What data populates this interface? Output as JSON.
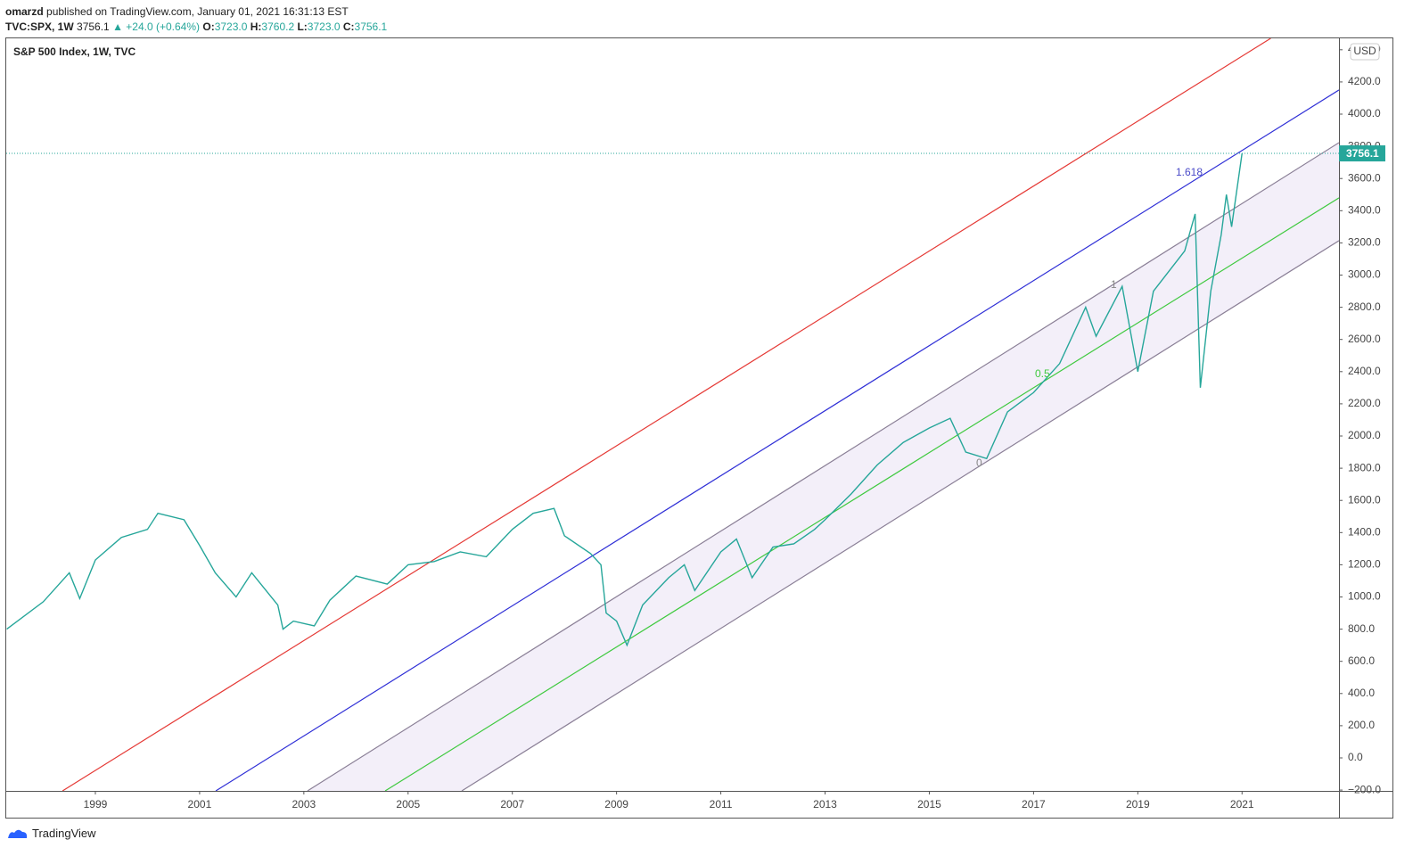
{
  "header": {
    "line1": {
      "author": "omarzd",
      "rest": "published on TradingView.com, January 01, 2021 16:31:13 EST"
    },
    "line2": {
      "symbol": "TVC:SPX, 1W",
      "last": "3756.1",
      "change": "▲ +24.0 (+0.64%)",
      "o_label": "O:",
      "o": "3723.0",
      "h_label": "H:",
      "h": "3760.2",
      "l_label": "L:",
      "l": "3723.0",
      "c_label": "C:",
      "c": "3756.1"
    }
  },
  "footer": {
    "brand": "TradingView"
  },
  "chart_data": {
    "type": "line",
    "title": "S&P 500 Index, 1W, TVC",
    "currency": "USD",
    "xlim": [
      1997.29,
      2022.86
    ],
    "xticks": [
      1999,
      2001,
      2003,
      2005,
      2007,
      2009,
      2011,
      2013,
      2015,
      2017,
      2019,
      2021
    ],
    "ylim": [
      -205,
      4471
    ],
    "yticks": [
      {
        "value": -200,
        "label": "−200.0"
      },
      {
        "value": 0,
        "label": "0.0"
      },
      {
        "value": 200,
        "label": "200.0"
      },
      {
        "value": 400,
        "label": "400.0"
      },
      {
        "value": 600,
        "label": "600.0"
      },
      {
        "value": 800,
        "label": "800.0"
      },
      {
        "value": 1000,
        "label": "1000.0"
      },
      {
        "value": 1200,
        "label": "1200.0"
      },
      {
        "value": 1400,
        "label": "1400.0"
      },
      {
        "value": 1600,
        "label": "1600.0"
      },
      {
        "value": 1800,
        "label": "1800.0"
      },
      {
        "value": 2000,
        "label": "2000.0"
      },
      {
        "value": 2200,
        "label": "2200.0"
      },
      {
        "value": 2400,
        "label": "2400.0"
      },
      {
        "value": 2600,
        "label": "2600.0"
      },
      {
        "value": 2800,
        "label": "2800.0"
      },
      {
        "value": 3000,
        "label": "3000.0"
      },
      {
        "value": 3200,
        "label": "3200.0"
      },
      {
        "value": 3400,
        "label": "3400.0"
      },
      {
        "value": 3600,
        "label": "3600.0"
      },
      {
        "value": 3800,
        "label": "3800.0"
      },
      {
        "value": 4000,
        "label": "4000.0"
      },
      {
        "value": 4200,
        "label": "4200.0"
      },
      {
        "value": 4400,
        "label": "4400.0"
      }
    ],
    "series": [
      {
        "name": "S&P 500 Index",
        "color": "#26a69a",
        "x": [
          1997.3,
          1998.0,
          1998.5,
          1998.7,
          1999.0,
          1999.5,
          2000.0,
          2000.2,
          2000.7,
          2001.0,
          2001.3,
          2001.7,
          2002.0,
          2002.5,
          2002.6,
          2002.8,
          2003.2,
          2003.5,
          2004.0,
          2004.6,
          2005.0,
          2005.5,
          2006.0,
          2006.5,
          2007.0,
          2007.4,
          2007.8,
          2008.0,
          2008.5,
          2008.7,
          2008.8,
          2009.0,
          2009.2,
          2009.5,
          2010.0,
          2010.3,
          2010.5,
          2011.0,
          2011.3,
          2011.6,
          2012.0,
          2012.4,
          2012.8,
          2013.0,
          2013.5,
          2014.0,
          2014.5,
          2015.0,
          2015.4,
          2015.7,
          2016.1,
          2016.5,
          2017.0,
          2017.5,
          2018.0,
          2018.2,
          2018.7,
          2019.0,
          2019.3,
          2019.9,
          2020.1,
          2020.2,
          2020.4,
          2020.6,
          2020.7,
          2020.8,
          2021.0
        ],
        "values": [
          800,
          970,
          1150,
          990,
          1230,
          1370,
          1420,
          1520,
          1480,
          1320,
          1150,
          1000,
          1150,
          950,
          800,
          850,
          820,
          980,
          1130,
          1080,
          1200,
          1220,
          1280,
          1250,
          1420,
          1520,
          1550,
          1380,
          1270,
          1200,
          900,
          850,
          700,
          950,
          1120,
          1200,
          1040,
          1280,
          1360,
          1120,
          1310,
          1330,
          1420,
          1480,
          1640,
          1820,
          1960,
          2050,
          2110,
          1900,
          1860,
          2150,
          2270,
          2450,
          2800,
          2620,
          2930,
          2400,
          2900,
          3150,
          3380,
          2300,
          2900,
          3250,
          3500,
          3300,
          3756.1
        ]
      }
    ],
    "last_line_color": "#26a69a",
    "channel_fill": "#f3eff9",
    "trend_lines": [
      {
        "color": "#e53935",
        "x": [
          1998.37,
          2021.55
        ],
        "y": [
          -205,
          4471
        ]
      },
      {
        "color": "#2f2fd6",
        "x": [
          2001.31,
          2022.86
        ],
        "y": [
          -205,
          4150
        ]
      },
      {
        "color": "#8a7f96",
        "x": [
          2003.07,
          2022.86
        ],
        "y": [
          -205,
          3823
        ]
      },
      {
        "color": "#3fc93f",
        "x": [
          2004.56,
          2022.86
        ],
        "y": [
          -205,
          3480
        ]
      },
      {
        "color": "#8a7f96",
        "x": [
          2006.03,
          2022.86
        ],
        "y": [
          -205,
          3214
        ]
      }
    ],
    "annotations": [
      {
        "text": "1.618",
        "color": "#4a4ac8"
      },
      {
        "text": "1",
        "color": "#888888"
      },
      {
        "text": "0.5",
        "color": "#3fc93f"
      },
      {
        "text": "0",
        "color": "#888888"
      }
    ]
  }
}
